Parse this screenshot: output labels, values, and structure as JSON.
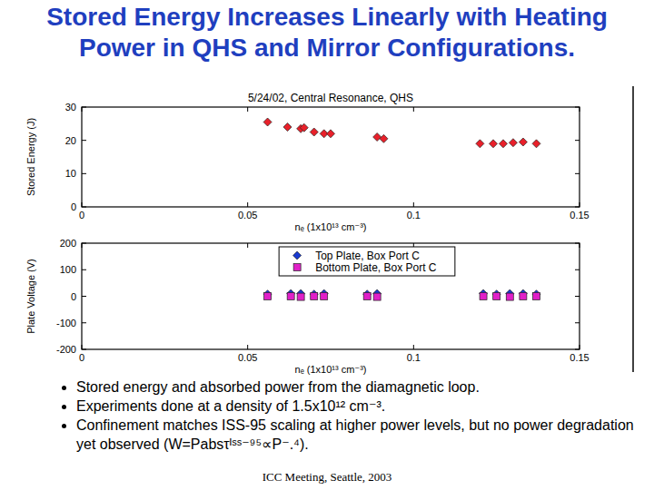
{
  "slide": {
    "title": "Stored Energy Increases Linearly with Heating Power in QHS and Mirror Configurations.",
    "bullets": [
      "Stored energy and absorbed power from the diamagnetic loop.",
      "Experiments done at a density of 1.5x10¹² cm⁻³.",
      "Confinement matches ISS-95 scaling at higher power levels, but no power degradation yet observed (W=Pabsτᴵˢˢ⁻⁹⁵∝P⁻.⁴)."
    ],
    "footer": "ICC Meeting, Seattle, 2003"
  },
  "chart_data": [
    {
      "type": "scatter",
      "title": "5/24/02, Central Resonance, QHS",
      "x_label": "nₑ (1x10¹³ cm⁻³)",
      "y_label": "Stored Energy (J)",
      "x": [
        0.056,
        0.062,
        0.066,
        0.067,
        0.07,
        0.073,
        0.075,
        0.089,
        0.091,
        0.12,
        0.124,
        0.127,
        0.13,
        0.133,
        0.137
      ],
      "values": [
        25.5,
        24,
        23.5,
        23.8,
        22.5,
        22,
        22,
        21,
        20.5,
        19,
        19,
        19,
        19.3,
        19.5,
        19
      ],
      "color": "#e8202a",
      "marker": "diamond",
      "xlim": [
        0,
        0.15
      ],
      "xticks": [
        0,
        0.05,
        0.1,
        0.15
      ],
      "ylim": [
        0,
        30
      ],
      "yticks": [
        0,
        10,
        20,
        30
      ],
      "grid": false
    },
    {
      "type": "scatter",
      "x_label": "nₑ (1x10¹³ cm⁻³)",
      "y_label": "Plate Voltage (V)",
      "x": [
        0.056,
        0.063,
        0.066,
        0.07,
        0.073,
        0.086,
        0.089,
        0.121,
        0.125,
        0.129,
        0.133,
        0.137
      ],
      "series": [
        {
          "name": "Top Plate, Box Port C",
          "color": "#1a3ad0",
          "marker": "diamond",
          "values": [
            8,
            10,
            10,
            8,
            10,
            8,
            10,
            10,
            8,
            10,
            10,
            8
          ]
        },
        {
          "name": "Bottom Plate, Box Port C",
          "color": "#e020c8",
          "marker": "square",
          "values": [
            0,
            0,
            -2,
            0,
            0,
            0,
            -2,
            0,
            0,
            -2,
            0,
            0
          ]
        }
      ],
      "xlim": [
        0,
        0.15
      ],
      "xticks": [
        0,
        0.05,
        0.1,
        0.15
      ],
      "ylim": [
        -200,
        200
      ],
      "yticks": [
        -200,
        -100,
        0,
        100,
        200
      ],
      "grid": false,
      "legend": "top"
    }
  ]
}
